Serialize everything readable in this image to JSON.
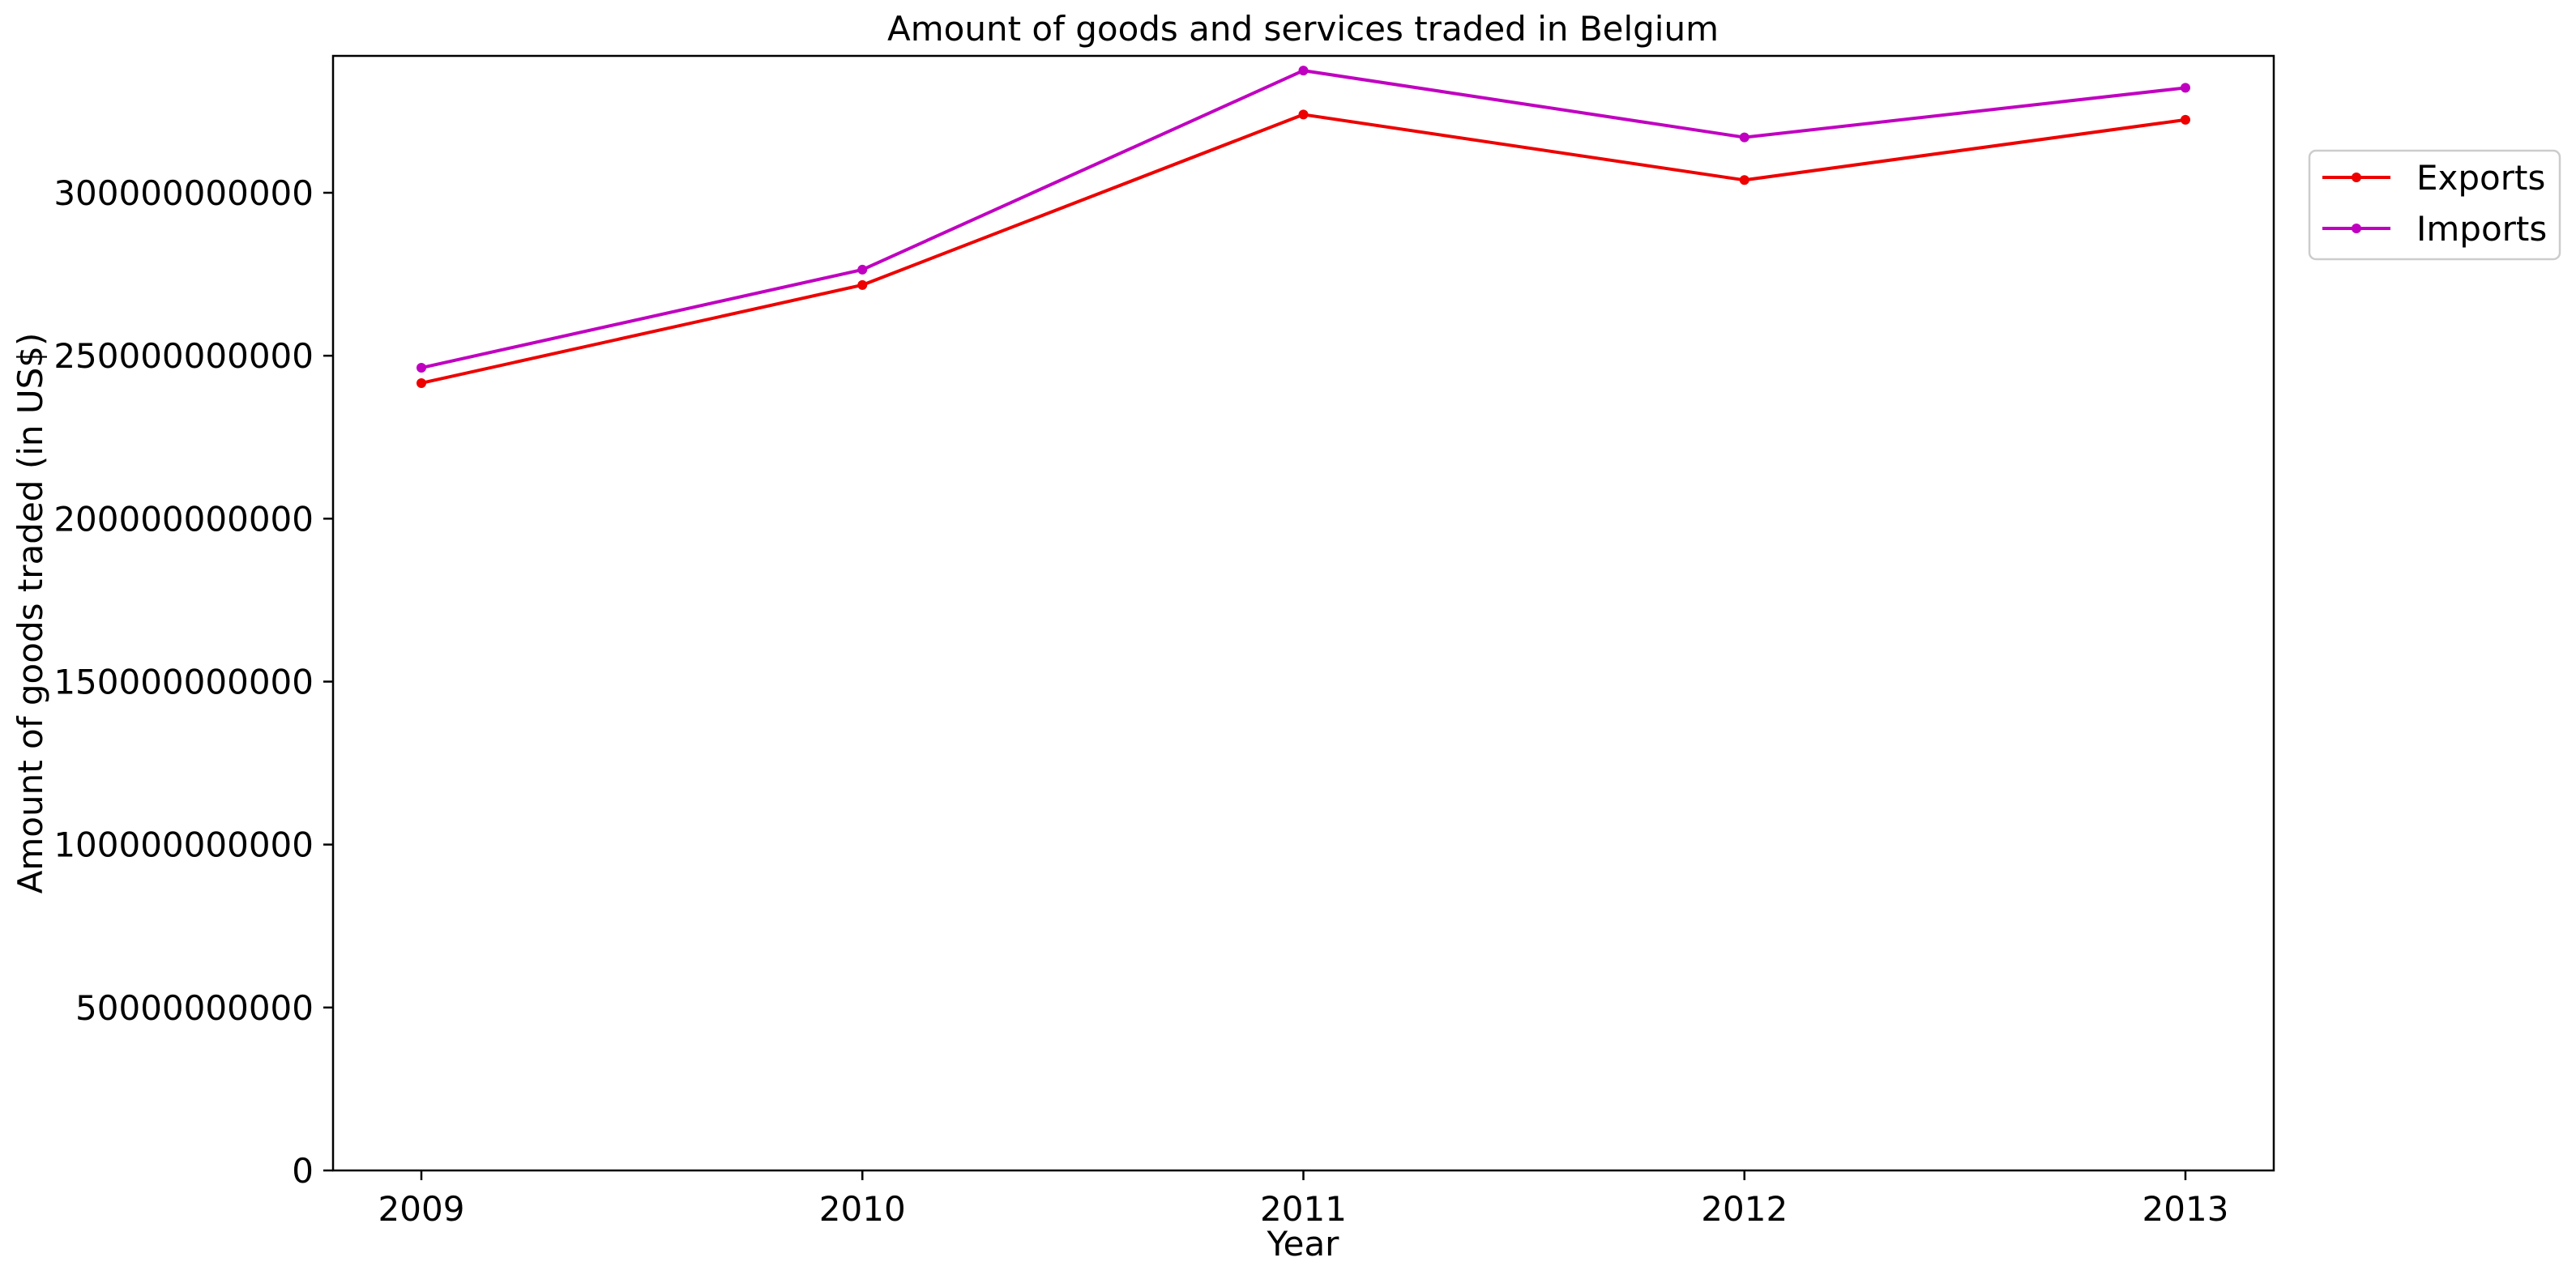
{
  "chart_data": {
    "type": "line",
    "title": "Amount of goods and services traded in Belgium",
    "xlabel": "Year",
    "ylabel": "Amount of goods traded (in US$)",
    "x": [
      2009,
      2010,
      2011,
      2012,
      2013
    ],
    "x_tick_labels": [
      "2009",
      "2010",
      "2011",
      "2012",
      "2013"
    ],
    "ylim": [
      0,
      342000000000
    ],
    "y_ticks": [
      0,
      50000000000,
      100000000000,
      150000000000,
      200000000000,
      250000000000,
      300000000000
    ],
    "y_tick_labels": [
      "0",
      "50000000000",
      "100000000000",
      "150000000000",
      "200000000000",
      "250000000000",
      "300000000000"
    ],
    "grid": false,
    "legend_position": "upper right, outside plot area",
    "series": [
      {
        "name": "Exports",
        "color": "#ee0000",
        "values": [
          241600000000,
          271700000000,
          324000000000,
          303900000000,
          322400000000
        ]
      },
      {
        "name": "Imports",
        "color": "#c000c0",
        "values": [
          246300000000,
          276400000000,
          337500000000,
          317000000000,
          332200000000
        ]
      }
    ]
  }
}
